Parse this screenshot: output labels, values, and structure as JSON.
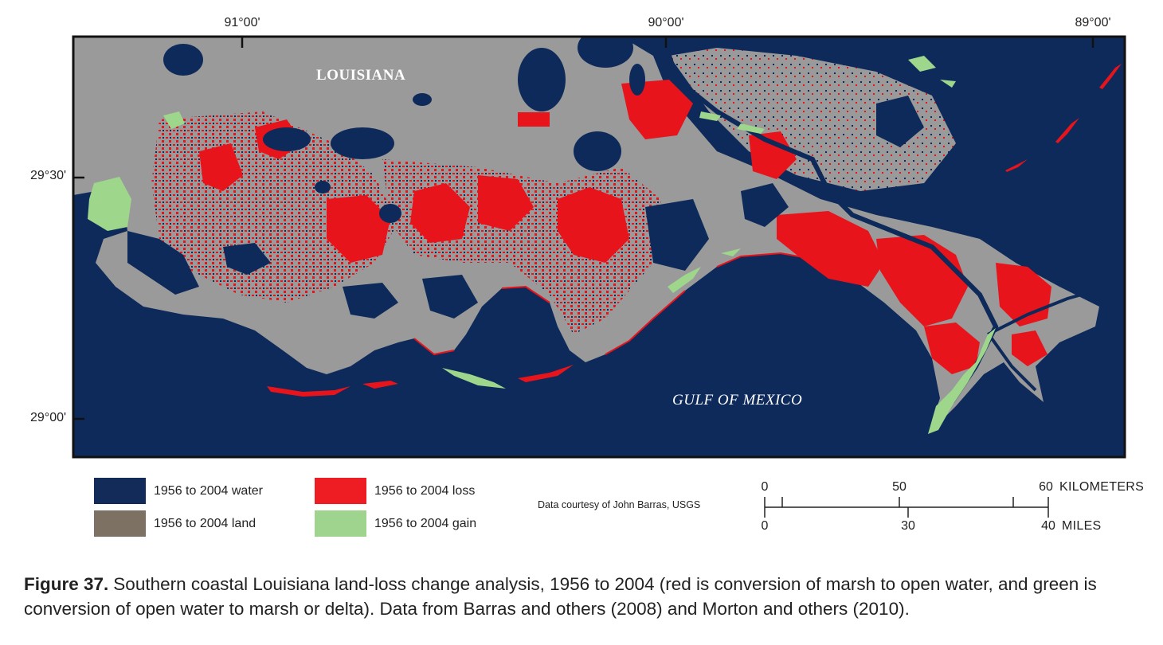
{
  "map": {
    "longitude_labels": [
      "91°00'",
      "90°00'",
      "89°00'"
    ],
    "latitude_labels": [
      "29°30'",
      "29°00'"
    ],
    "state_label": "LOUISIANA",
    "gulf_label": "GULF OF MEXICO",
    "colors": {
      "water": "#0d2a5a",
      "land": "#9a9a9a",
      "loss": "#e8141c",
      "gain": "#9ed68c",
      "frame": "#111111"
    }
  },
  "legend": {
    "items": [
      {
        "label": "1956 to 2004 water",
        "color": "#132b59"
      },
      {
        "label": "1956 to 2004 land",
        "color": "#7d7163"
      },
      {
        "label": "1956 to 2004 loss",
        "color": "#ee1c23"
      },
      {
        "label": "1956 to 2004 gain",
        "color": "#9fd48f"
      }
    ]
  },
  "credit": "Data courtesy of John Barras, USGS",
  "scale_bar": {
    "km_ticks": [
      "0",
      "50",
      "60"
    ],
    "km_unit": "KILOMETERS",
    "mile_ticks": [
      "0",
      "30",
      "40"
    ],
    "mile_unit": "MILES"
  },
  "caption": {
    "figure": "Figure 37.",
    "text": "Southern coastal Louisiana land-loss change analysis, 1956 to 2004 (red is conversion of marsh to open water, and green is conversion of open water to marsh or delta). Data from Barras and others (2008) and Morton and others (2010)."
  }
}
